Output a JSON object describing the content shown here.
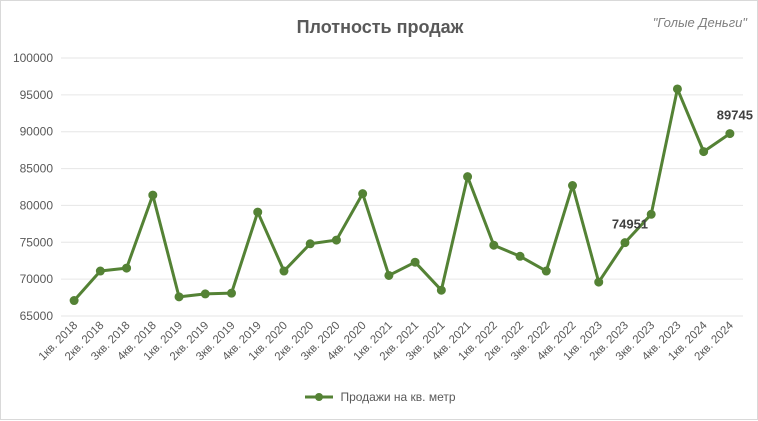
{
  "chart": {
    "title": "Плотность продаж",
    "watermark": "\"Голые Деньги\""
  },
  "colors": {
    "series": "#548235",
    "grid": "#e6e6e6"
  },
  "chart_data": {
    "type": "line",
    "title": "Плотность продаж",
    "xlabel": "",
    "ylabel": "",
    "ylim": [
      65000,
      100000
    ],
    "yticks": [
      65000,
      70000,
      75000,
      80000,
      85000,
      90000,
      95000,
      100000
    ],
    "grid": true,
    "legend_position": "bottom",
    "categories": [
      "1кв. 2018",
      "2кв. 2018",
      "3кв. 2018",
      "4кв. 2018",
      "1кв. 2019",
      "2кв. 2019",
      "3кв. 2019",
      "4кв. 2019",
      "1кв. 2020",
      "2кв. 2020",
      "3кв. 2020",
      "4кв. 2020",
      "1кв. 2021",
      "2кв. 2021",
      "3кв. 2021",
      "4кв. 2021",
      "1кв. 2022",
      "2кв. 2022",
      "3кв. 2022",
      "4кв. 2022",
      "1кв. 2023",
      "2кв. 2023",
      "3кв. 2023",
      "4кв. 2023",
      "1кв. 2024",
      "2кв. 2024"
    ],
    "series": [
      {
        "name": "Продажи на кв. метр",
        "values": [
          67100,
          71100,
          71500,
          81400,
          67600,
          68000,
          68100,
          79100,
          71100,
          74800,
          75300,
          81600,
          70500,
          72300,
          68500,
          83900,
          74600,
          73100,
          71100,
          82700,
          69600,
          74951,
          78800,
          95800,
          87300,
          89745
        ]
      }
    ],
    "data_labels": [
      {
        "index": 21,
        "text": "74951"
      },
      {
        "index": 25,
        "text": "89745"
      }
    ]
  }
}
